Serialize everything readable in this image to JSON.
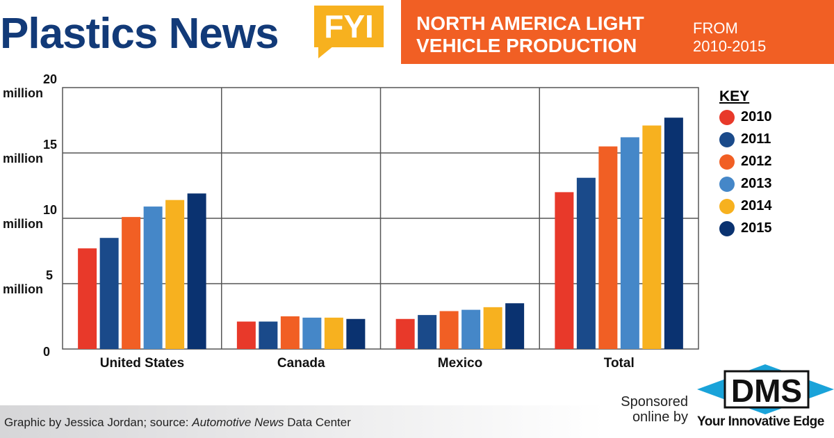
{
  "header": {
    "logo": "Plastics News",
    "badge": "FYI",
    "title": "NORTH AMERICA LIGHT VEHICLE PRODUCTION",
    "subtitle_1": "FROM",
    "subtitle_2": "2010-2015"
  },
  "colors": {
    "navy": "#123a78",
    "orange": "#f15f24",
    "yellow": "#f7b11f"
  },
  "chart_data": {
    "type": "bar",
    "title": "NORTH AMERICA LIGHT VEHICLE PRODUCTION FROM 2010-2015",
    "categories": [
      "United States",
      "Canada",
      "Mexico",
      "Total"
    ],
    "yticks": [
      {
        "l1": "20",
        "l2": "million",
        "v": 20
      },
      {
        "l1": "15",
        "l2": "million",
        "v": 15
      },
      {
        "l1": "10",
        "l2": "million",
        "v": 10
      },
      {
        "l1": "5",
        "l2": "million",
        "v": 5
      },
      {
        "l1": "0",
        "l2": "",
        "v": 0
      }
    ],
    "ylim": [
      0,
      20
    ],
    "unit": "million vehicles",
    "grid": true,
    "legend_title": "KEY",
    "legend_placement": "right",
    "series": [
      {
        "name": "2010",
        "color": "#e8392a",
        "values": [
          7.7,
          2.1,
          2.3,
          12.0
        ]
      },
      {
        "name": "2011",
        "color": "#1a4a8a",
        "values": [
          8.5,
          2.1,
          2.6,
          13.1
        ]
      },
      {
        "name": "2012",
        "color": "#f15f24",
        "values": [
          10.1,
          2.5,
          2.9,
          15.5
        ]
      },
      {
        "name": "2013",
        "color": "#4587c8",
        "values": [
          10.9,
          2.4,
          3.0,
          16.2
        ]
      },
      {
        "name": "2014",
        "color": "#f7b11f",
        "values": [
          11.4,
          2.4,
          3.2,
          17.1
        ]
      },
      {
        "name": "2015",
        "color": "#0a3270",
        "values": [
          11.9,
          2.3,
          3.5,
          17.7
        ]
      }
    ]
  },
  "footer": {
    "credit_prefix": "Graphic by Jessica Jordan; source: ",
    "credit_source": "Automotive News",
    "credit_suffix": " Data Center",
    "sponsored": "Sponsored online by",
    "sponsor_logo": "DMS",
    "sponsor_tagline": "Your Innovative Edge"
  }
}
